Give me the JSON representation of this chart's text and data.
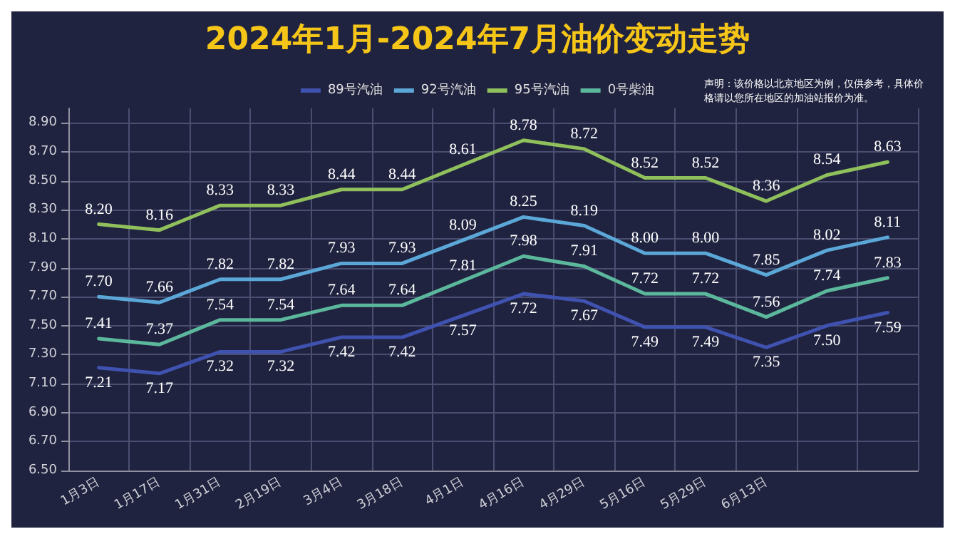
{
  "chart_data": {
    "type": "line",
    "title": "2024年1月-2024年7月油价变动走势",
    "annotations": [
      "声明：该价格以北京地区为例，仅供参考，具体价格请以您所在地区的加油站报价为准。"
    ],
    "categories": [
      "1月3日",
      "1月17日",
      "1月31日",
      "2月19日",
      "3月4日",
      "3月18日",
      "4月1日",
      "4月16日",
      "4月29日",
      "5月16日",
      "5月29日",
      "6月13日",
      null,
      null
    ],
    "series": [
      {
        "name": "89号汽油",
        "color": "#3f52b0",
        "values": [
          7.21,
          7.17,
          7.32,
          7.32,
          7.42,
          7.42,
          7.57,
          7.72,
          7.67,
          7.49,
          7.49,
          7.35,
          7.5,
          7.59
        ],
        "value_labels": [
          "7.21",
          "7.17",
          "7.32",
          "7.32",
          "7.42",
          "7.42",
          "7.57",
          "7.72",
          "7.67",
          "7.49",
          "7.49",
          "7.35",
          "7.50",
          "7.59"
        ]
      },
      {
        "name": "92号汽油",
        "color": "#5ba8d8",
        "values": [
          7.7,
          7.66,
          7.82,
          7.82,
          7.93,
          7.93,
          8.09,
          8.25,
          8.19,
          8.0,
          8.0,
          7.85,
          8.02,
          8.11
        ],
        "value_labels": [
          "7.70",
          "7.66",
          "7.82",
          "7.82",
          "7.93",
          "7.93",
          "8.09",
          "8.25",
          "8.19",
          "8.00",
          "8.00",
          "7.85",
          "8.02",
          "8.11"
        ]
      },
      {
        "name": "95号汽油",
        "color": "#8fc05c",
        "values": [
          8.2,
          8.16,
          8.33,
          8.33,
          8.44,
          8.44,
          8.61,
          8.78,
          8.72,
          8.52,
          8.52,
          8.36,
          8.54,
          8.63
        ],
        "value_labels": [
          "8.20",
          "8.16",
          "8.33",
          "8.33",
          "8.44",
          "8.44",
          "8.61",
          "8.78",
          "8.72",
          "8.52",
          "8.52",
          "8.36",
          "8.54",
          "8.63"
        ]
      },
      {
        "name": "0号柴油",
        "color": "#5cb89c",
        "values": [
          7.41,
          7.37,
          7.54,
          7.54,
          7.64,
          7.64,
          7.81,
          7.98,
          7.91,
          7.72,
          7.72,
          7.56,
          7.74,
          7.83
        ],
        "value_labels": [
          "7.41",
          "7.37",
          "7.54",
          "7.54",
          "7.64",
          "7.64",
          "7.81",
          "7.98",
          "7.91",
          "7.72",
          "7.72",
          "7.56",
          "7.74",
          "7.83"
        ]
      }
    ],
    "ylim": [
      6.5,
      9.0
    ],
    "yticks": [
      {
        "value": 6.5,
        "label": "6.50"
      },
      {
        "value": 6.7,
        "label": "6.70"
      },
      {
        "value": 6.9,
        "label": "6.90"
      },
      {
        "value": 7.1,
        "label": "7.10"
      },
      {
        "value": 7.3,
        "label": "7.30"
      },
      {
        "value": 7.5,
        "label": "7.50"
      },
      {
        "value": 7.7,
        "label": "7.70"
      },
      {
        "value": 7.9,
        "label": "7.90"
      },
      {
        "value": 8.1,
        "label": "8.10"
      },
      {
        "value": 8.3,
        "label": "8.30"
      },
      {
        "value": 8.5,
        "label": "8.50"
      },
      {
        "value": 8.7,
        "label": "8.70"
      },
      {
        "value": 8.9,
        "label": "8.90"
      }
    ],
    "grid": true,
    "legend": "top",
    "marker": "none",
    "line_style": "solid"
  }
}
